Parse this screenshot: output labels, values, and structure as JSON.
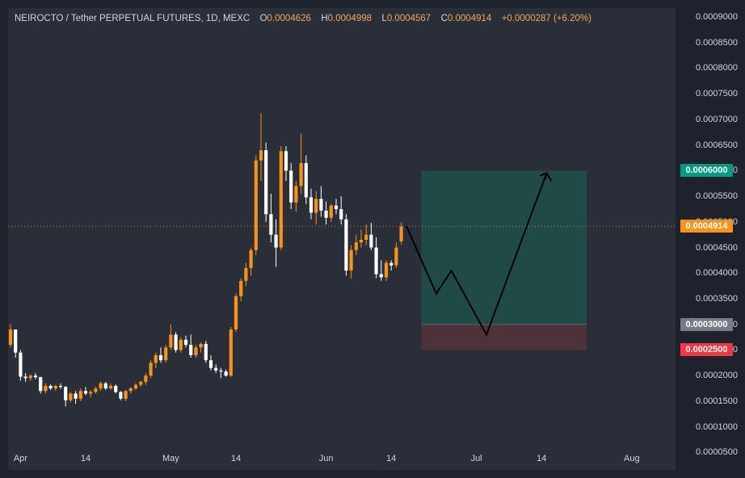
{
  "legend": {
    "symbol": "NEIROCTO / Tether PERPETUAL FUTURES, 1D, MEXC",
    "o_label": "O",
    "o_value": "0.0004626",
    "h_label": "H",
    "h_value": "0.0004998",
    "l_label": "L",
    "l_value": "0.0004567",
    "c_label": "C",
    "c_value": "0.0004914",
    "change": "+0.0000287 (+6.20%)"
  },
  "colors": {
    "background": "#1e222d",
    "plot_background": "#2a2e39",
    "up_candle": "#f7931a",
    "down_candle": "#ffffff",
    "profit_zone": "#1f4a46",
    "loss_zone": "#4f3139",
    "current_price_tag": "#f7931a",
    "target_tag": "#089981",
    "entry_tag": "#787b86",
    "stop_tag": "#f23645",
    "forecast_line": "#000000"
  },
  "price_tags": {
    "target": "0.0006000",
    "current": "0.0004914",
    "entry": "0.0003000",
    "stop": "0.0002500"
  },
  "chart_data": {
    "type": "candlestick",
    "title": "NEIROCTO / Tether PERPETUAL FUTURES, 1D, MEXC",
    "y_axis_ticks": [
      "0.0000500",
      "0.0001000",
      "0.0001500",
      "0.0002000",
      "0.0002500",
      "0.0003000",
      "0.0003500",
      "0.0004000",
      "0.0004500",
      "0.0005000",
      "0.0005500",
      "0.0006000",
      "0.0006500",
      "0.0007000",
      "0.0007500",
      "0.0008000",
      "0.0008500",
      "0.0009000"
    ],
    "x_axis_ticks": [
      {
        "label": "Apr",
        "date": "2024-04-01"
      },
      {
        "label": "14",
        "date": "2024-04-14"
      },
      {
        "label": "May",
        "date": "2024-05-01"
      },
      {
        "label": "14",
        "date": "2024-05-14"
      },
      {
        "label": "Jun",
        "date": "2024-06-01"
      },
      {
        "label": "14",
        "date": "2024-06-14"
      },
      {
        "label": "Jul",
        "date": "2024-07-01"
      },
      {
        "label": "14",
        "date": "2024-07-14"
      },
      {
        "label": "Aug",
        "date": "2024-08-01"
      }
    ],
    "ylim": [
      4e-05,
      0.0009
    ],
    "xlim": [
      "2024-03-30",
      "2024-08-02"
    ],
    "current_price": 0.0004914,
    "candles": [
      [
        "2024-03-30",
        0.00026,
        0.0003,
        0.000255,
        0.00029
      ],
      [
        "2024-03-31",
        0.00029,
        0.00029,
        0.000235,
        0.000245
      ],
      [
        "2024-04-01",
        0.000245,
        0.00025,
        0.00019,
        0.000198
      ],
      [
        "2024-04-02",
        0.000198,
        0.000205,
        0.000188,
        0.000195
      ],
      [
        "2024-04-03",
        0.000195,
        0.000203,
        0.00019,
        0.0002
      ],
      [
        "2024-04-04",
        0.0002,
        0.000205,
        0.000193,
        0.000197
      ],
      [
        "2024-04-05",
        0.000197,
        0.000198,
        0.000165,
        0.00017
      ],
      [
        "2024-04-06",
        0.00017,
        0.000185,
        0.000165,
        0.00018
      ],
      [
        "2024-04-07",
        0.00018,
        0.000183,
        0.000172,
        0.000175
      ],
      [
        "2024-04-08",
        0.000175,
        0.000182,
        0.00017,
        0.00018
      ],
      [
        "2024-04-09",
        0.00018,
        0.000185,
        0.000174,
        0.000178
      ],
      [
        "2024-04-10",
        0.000178,
        0.00018,
        0.00014,
        0.000152
      ],
      [
        "2024-04-11",
        0.000152,
        0.000168,
        0.000148,
        0.000165
      ],
      [
        "2024-04-12",
        0.000165,
        0.00017,
        0.000145,
        0.000155
      ],
      [
        "2024-04-13",
        0.000155,
        0.000175,
        0.00015,
        0.00017
      ],
      [
        "2024-04-14",
        0.00017,
        0.000178,
        0.000162,
        0.000165
      ],
      [
        "2024-04-15",
        0.000165,
        0.000172,
        0.000158,
        0.000168
      ],
      [
        "2024-04-16",
        0.000168,
        0.000178,
        0.000165,
        0.000175
      ],
      [
        "2024-04-17",
        0.000175,
        0.000188,
        0.00017,
        0.000185
      ],
      [
        "2024-04-18",
        0.000185,
        0.000188,
        0.000172,
        0.000175
      ],
      [
        "2024-04-19",
        0.000175,
        0.000185,
        0.000172,
        0.00018
      ],
      [
        "2024-04-20",
        0.00018,
        0.000183,
        0.000165,
        0.000168
      ],
      [
        "2024-04-21",
        0.000168,
        0.00017,
        0.000152,
        0.000155
      ],
      [
        "2024-04-22",
        0.000155,
        0.000172,
        0.00015,
        0.00017
      ],
      [
        "2024-04-23",
        0.00017,
        0.000178,
        0.000165,
        0.000175
      ],
      [
        "2024-04-24",
        0.000175,
        0.000185,
        0.000172,
        0.000182
      ],
      [
        "2024-04-25",
        0.000182,
        0.00019,
        0.000178,
        0.000188
      ],
      [
        "2024-04-26",
        0.000188,
        0.000205,
        0.000182,
        0.0002
      ],
      [
        "2024-04-27",
        0.0002,
        0.00023,
        0.000195,
        0.000225
      ],
      [
        "2024-04-28",
        0.000225,
        0.000245,
        0.000215,
        0.00024
      ],
      [
        "2024-04-29",
        0.00024,
        0.000255,
        0.000225,
        0.00023
      ],
      [
        "2024-04-30",
        0.00023,
        0.00026,
        0.000225,
        0.000255
      ],
      [
        "2024-05-01",
        0.000255,
        0.0003,
        0.00025,
        0.00028
      ],
      [
        "2024-05-02",
        0.00028,
        0.000285,
        0.000245,
        0.00025
      ],
      [
        "2024-05-03",
        0.00025,
        0.000275,
        0.000245,
        0.00027
      ],
      [
        "2024-05-04",
        0.00027,
        0.000278,
        0.000255,
        0.00026
      ],
      [
        "2024-05-05",
        0.00026,
        0.00028,
        0.000235,
        0.00024
      ],
      [
        "2024-05-06",
        0.00024,
        0.00026,
        0.000235,
        0.000255
      ],
      [
        "2024-05-07",
        0.000255,
        0.000265,
        0.000245,
        0.000262
      ],
      [
        "2024-05-08",
        0.000262,
        0.000268,
        0.000225,
        0.00023
      ],
      [
        "2024-05-09",
        0.00023,
        0.00024,
        0.00021,
        0.000215
      ],
      [
        "2024-05-10",
        0.000215,
        0.000222,
        0.000205,
        0.00021
      ],
      [
        "2024-05-11",
        0.00021,
        0.000215,
        0.000195,
        0.000208
      ],
      [
        "2024-05-12",
        0.000208,
        0.000212,
        0.000198,
        0.0002
      ],
      [
        "2024-05-13",
        0.0002,
        0.000295,
        0.000198,
        0.00029
      ],
      [
        "2024-05-14",
        0.00029,
        0.00036,
        0.000285,
        0.000355
      ],
      [
        "2024-05-15",
        0.000355,
        0.00039,
        0.000345,
        0.000385
      ],
      [
        "2024-05-16",
        0.000385,
        0.00042,
        0.000375,
        0.00041
      ],
      [
        "2024-05-17",
        0.00041,
        0.00045,
        0.000395,
        0.000445
      ],
      [
        "2024-05-18",
        0.000445,
        0.00063,
        0.000435,
        0.00062
      ],
      [
        "2024-05-19",
        0.00062,
        0.000712,
        0.00058,
        0.00064
      ],
      [
        "2024-05-20",
        0.00064,
        0.000655,
        0.0005,
        0.000515
      ],
      [
        "2024-05-21",
        0.000515,
        0.000555,
        0.00046,
        0.000475
      ],
      [
        "2024-05-22",
        0.000475,
        0.000505,
        0.000412,
        0.00045
      ],
      [
        "2024-05-23",
        0.00045,
        0.000648,
        0.000445,
        0.000638
      ],
      [
        "2024-05-24",
        0.000638,
        0.000648,
        0.00058,
        0.0006
      ],
      [
        "2024-05-25",
        0.0006,
        0.000615,
        0.000525,
        0.000538
      ],
      [
        "2024-05-26",
        0.000538,
        0.00058,
        0.00052,
        0.00057
      ],
      [
        "2024-05-27",
        0.00057,
        0.000672,
        0.000555,
        0.000615
      ],
      [
        "2024-05-28",
        0.000615,
        0.00063,
        0.000535,
        0.000548
      ],
      [
        "2024-05-29",
        0.000548,
        0.000565,
        0.000505,
        0.000518
      ],
      [
        "2024-05-30",
        0.000518,
        0.00056,
        0.000495,
        0.000545
      ],
      [
        "2024-05-31",
        0.000545,
        0.00057,
        0.00051,
        0.000522
      ],
      [
        "2024-06-01",
        0.000522,
        0.00054,
        0.000495,
        0.000508
      ],
      [
        "2024-06-02",
        0.000508,
        0.000535,
        0.0005,
        0.000532
      ],
      [
        "2024-06-03",
        0.000532,
        0.000545,
        0.000515,
        0.000525
      ],
      [
        "2024-06-04",
        0.000525,
        0.00055,
        0.000495,
        0.000505
      ],
      [
        "2024-06-05",
        0.000505,
        0.000515,
        0.000395,
        0.000405
      ],
      [
        "2024-06-06",
        0.000405,
        0.000455,
        0.00039,
        0.000445
      ],
      [
        "2024-06-07",
        0.000445,
        0.000475,
        0.000435,
        0.00046
      ],
      [
        "2024-06-08",
        0.00046,
        0.000485,
        0.00045,
        0.000465
      ],
      [
        "2024-06-09",
        0.000465,
        0.000495,
        0.000455,
        0.000475
      ],
      [
        "2024-06-10",
        0.000475,
        0.000498,
        0.000445,
        0.00045
      ],
      [
        "2024-06-11",
        0.00045,
        0.00047,
        0.00039,
        0.000398
      ],
      [
        "2024-06-12",
        0.000398,
        0.000425,
        0.000385,
        0.000392
      ],
      [
        "2024-06-13",
        0.000392,
        0.000425,
        0.000385,
        0.00042
      ],
      [
        "2024-06-14",
        0.00042,
        0.000425,
        0.000405,
        0.000415
      ],
      [
        "2024-06-15",
        0.000415,
        0.00046,
        0.00041,
        0.00045
      ],
      [
        "2024-06-16",
        0.000462,
        0.000499,
        0.000456,
        0.000491
      ]
    ],
    "position": {
      "entry": 0.0003,
      "target": 0.0006,
      "stop": 0.00025,
      "start": "2024-06-20",
      "end": "2024-07-23"
    },
    "forecast_path": [
      [
        "2024-06-17",
        0.000492
      ],
      [
        "2024-06-23",
        0.00036
      ],
      [
        "2024-06-26",
        0.000405
      ],
      [
        "2024-07-03",
        0.00028
      ],
      [
        "2024-07-15",
        0.000595
      ],
      [
        "2024-07-16",
        0.00058
      ]
    ]
  }
}
